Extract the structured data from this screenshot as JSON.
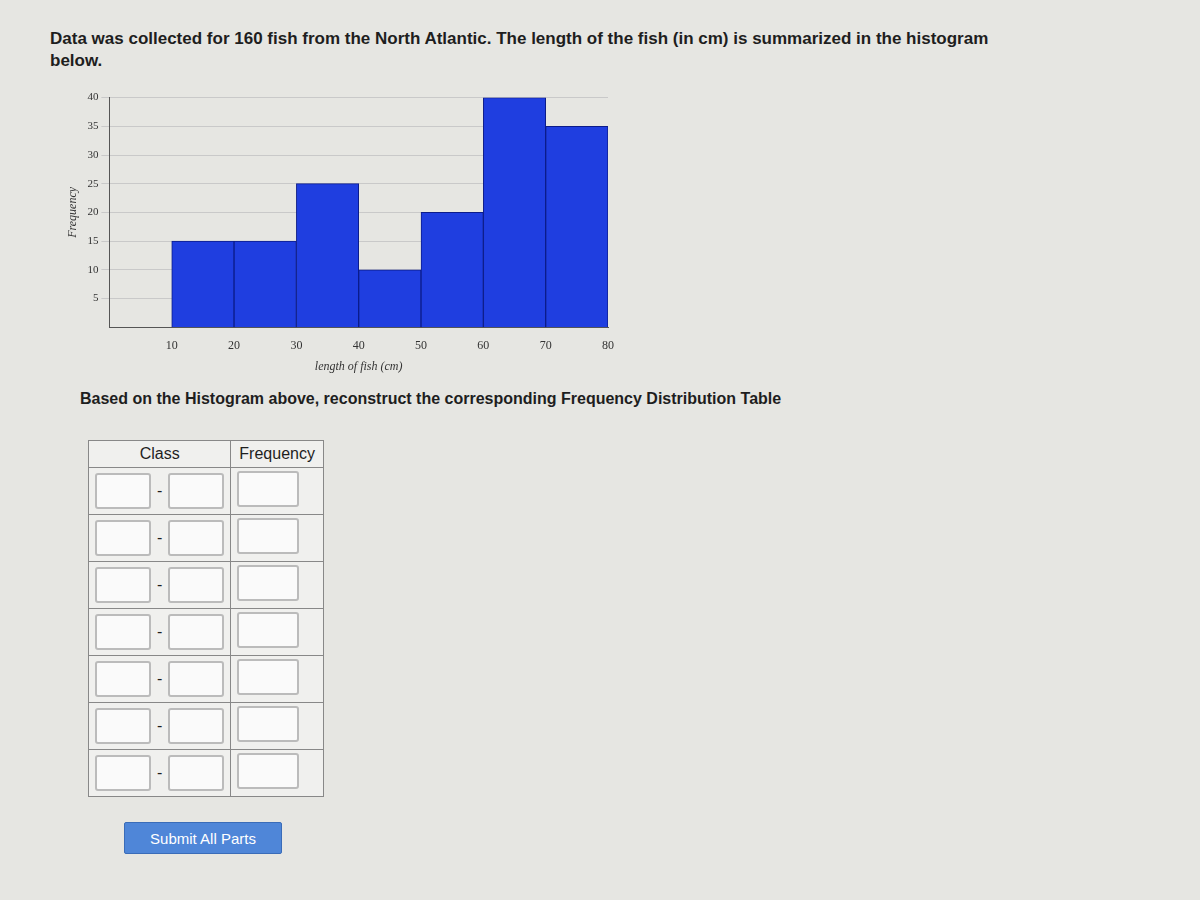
{
  "header": "Data was collected for 160 fish from the North Atlantic. The length of the fish (in cm) is summarized in the histogram below.",
  "chart_data": {
    "type": "histogram",
    "bins": [
      10,
      20,
      30,
      40,
      50,
      60,
      70,
      80
    ],
    "values": [
      15,
      15,
      25,
      10,
      20,
      40,
      35
    ],
    "color": "#1f3ee0",
    "x_label": "length of fish (cm)",
    "y_label": "Frequency",
    "xlim": [
      0,
      80
    ],
    "xticks": [
      10,
      20,
      30,
      40,
      50,
      60,
      70,
      80
    ],
    "ylim": [
      0,
      40
    ],
    "yticks": [
      5,
      10,
      15,
      20,
      25,
      30,
      35,
      40
    ],
    "grid": true
  },
  "prompt": "Based on the Histogram above, reconstruct the corresponding Frequency Distribution Table",
  "table": {
    "columns": [
      "Class",
      "Frequency"
    ],
    "row_count": 7,
    "separator": "-"
  },
  "button": "Submit All Parts"
}
